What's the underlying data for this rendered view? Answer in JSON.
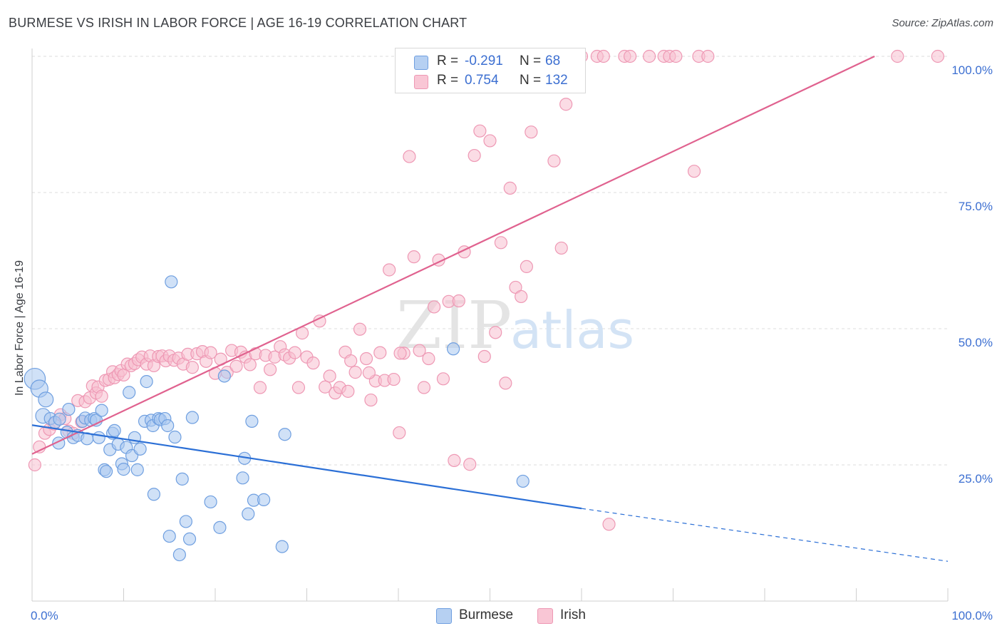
{
  "title": "BURMESE VS IRISH IN LABOR FORCE | AGE 16-19 CORRELATION CHART",
  "source": "Source: ZipAtlas.com",
  "watermark": "ZIPatlas",
  "colors": {
    "burmese_fill": "#a9c8f0",
    "burmese_stroke": "#6f9fe0",
    "burmese_line": "#2b6fd6",
    "irish_fill": "#f7bfd0",
    "irish_stroke": "#ee98b4",
    "irish_line": "#e0628f",
    "tick_text": "#3c6fd1",
    "grid": "#dddddd"
  },
  "legend": {
    "rows": [
      {
        "r_label": "R =",
        "r_value": "-0.291",
        "n_label": "N =",
        "n_value": "68",
        "series": "burmese"
      },
      {
        "r_label": "R =",
        "r_value": "0.754",
        "n_label": "N =",
        "n_value": "132",
        "series": "irish"
      }
    ]
  },
  "bottom_legend": [
    "Burmese",
    "Irish"
  ],
  "chart_data": {
    "type": "scatter",
    "title": "BURMESE VS IRISH IN LABOR FORCE | AGE 16-19 CORRELATION CHART",
    "xlabel": "",
    "ylabel": "In Labor Force | Age 16-19",
    "xlim": [
      0,
      100
    ],
    "ylim": [
      0,
      100
    ],
    "x_tick_labels": [
      "0.0%",
      "100.0%"
    ],
    "y_ticks": [
      25,
      50,
      75,
      100
    ],
    "y_tick_labels": [
      "25.0%",
      "50.0%",
      "75.0%",
      "100.0%"
    ],
    "grid": true,
    "legend_position": "top-center",
    "series": [
      {
        "name": "Burmese",
        "r": -0.291,
        "n": 68,
        "trend": {
          "x0": 0,
          "y0": 32.3,
          "x1": 60,
          "y1": 17.0,
          "dashed_to_x": 100,
          "dashed_to_y": 7.3
        },
        "points": [
          [
            0.3,
            40.8,
            3
          ],
          [
            0.8,
            39.0,
            2
          ],
          [
            1.5,
            37.0,
            1.5
          ],
          [
            1.2,
            34.0,
            1.5
          ],
          [
            2.0,
            33.5,
            1
          ],
          [
            2.5,
            32.8,
            1
          ],
          [
            3.0,
            33.4,
            1
          ],
          [
            2.9,
            29.0,
            1
          ],
          [
            3.8,
            31.0,
            1
          ],
          [
            4.0,
            35.2,
            1
          ],
          [
            4.5,
            30.0,
            1
          ],
          [
            5.0,
            30.4,
            1
          ],
          [
            5.5,
            33.0,
            1
          ],
          [
            5.8,
            33.6,
            1
          ],
          [
            6.0,
            29.8,
            1
          ],
          [
            6.4,
            33.2,
            1
          ],
          [
            6.8,
            33.5,
            1
          ],
          [
            7.0,
            33.2,
            1
          ],
          [
            7.3,
            30.0,
            1
          ],
          [
            7.6,
            35.0,
            1
          ],
          [
            7.9,
            24.1,
            1
          ],
          [
            8.1,
            23.8,
            1
          ],
          [
            8.5,
            27.8,
            1
          ],
          [
            8.8,
            30.8,
            1
          ],
          [
            9.0,
            31.3,
            1
          ],
          [
            9.4,
            28.8,
            1
          ],
          [
            9.8,
            25.2,
            1
          ],
          [
            10.0,
            24.2,
            1
          ],
          [
            10.3,
            28.2,
            1
          ],
          [
            10.6,
            38.3,
            1
          ],
          [
            10.9,
            26.7,
            1
          ],
          [
            11.2,
            30.0,
            1
          ],
          [
            11.5,
            24.1,
            1
          ],
          [
            11.8,
            27.9,
            1
          ],
          [
            12.3,
            33.0,
            1
          ],
          [
            12.5,
            40.3,
            1
          ],
          [
            13.0,
            33.2,
            1
          ],
          [
            13.2,
            32.2,
            1
          ],
          [
            13.3,
            19.6,
            1
          ],
          [
            13.8,
            33.5,
            1
          ],
          [
            14.0,
            33.3,
            1
          ],
          [
            14.5,
            33.5,
            1
          ],
          [
            14.8,
            32.2,
            1
          ],
          [
            15.0,
            11.9,
            1
          ],
          [
            15.2,
            58.6,
            1
          ],
          [
            15.6,
            30.1,
            1
          ],
          [
            16.1,
            8.5,
            1
          ],
          [
            16.4,
            22.4,
            1
          ],
          [
            16.8,
            14.6,
            1
          ],
          [
            17.2,
            11.4,
            1
          ],
          [
            17.5,
            33.7,
            1
          ],
          [
            19.5,
            18.2,
            1
          ],
          [
            20.5,
            13.5,
            1
          ],
          [
            21.0,
            41.3,
            1
          ],
          [
            23.2,
            26.2,
            1
          ],
          [
            23.0,
            22.6,
            1
          ],
          [
            23.6,
            16.0,
            1
          ],
          [
            24.0,
            33.0,
            1
          ],
          [
            24.2,
            18.5,
            1
          ],
          [
            25.3,
            18.6,
            1
          ],
          [
            27.3,
            10.0,
            1
          ],
          [
            27.6,
            30.6,
            1
          ],
          [
            46.0,
            46.3,
            1
          ],
          [
            53.6,
            22.0,
            1
          ]
        ]
      },
      {
        "name": "Irish",
        "r": 0.754,
        "n": 132,
        "trend": {
          "x0": 0,
          "y0": 27.0,
          "x1": 92,
          "y1": 100.0
        },
        "points": [
          [
            0.3,
            25.0,
            1
          ],
          [
            0.8,
            28.3,
            1
          ],
          [
            1.4,
            30.8,
            1
          ],
          [
            1.9,
            31.5,
            1
          ],
          [
            2.4,
            32.5,
            1
          ],
          [
            3.1,
            34.2,
            1
          ],
          [
            3.6,
            33.5,
            1
          ],
          [
            4.0,
            31.2,
            1
          ],
          [
            4.5,
            30.8,
            1
          ],
          [
            5.0,
            36.8,
            1
          ],
          [
            5.4,
            32.9,
            1
          ],
          [
            5.8,
            36.6,
            1
          ],
          [
            6.3,
            37.3,
            1
          ],
          [
            6.6,
            39.5,
            1
          ],
          [
            7.0,
            38.2,
            1
          ],
          [
            7.2,
            39.3,
            1
          ],
          [
            7.6,
            37.6,
            1
          ],
          [
            8.0,
            40.5,
            1
          ],
          [
            8.4,
            40.7,
            1
          ],
          [
            8.8,
            42.1,
            1
          ],
          [
            9.0,
            41.0,
            1
          ],
          [
            9.4,
            41.6,
            1
          ],
          [
            9.7,
            42.3,
            1
          ],
          [
            10.0,
            41.5,
            1
          ],
          [
            10.4,
            43.5,
            1
          ],
          [
            10.8,
            43.2,
            1
          ],
          [
            11.2,
            43.6,
            1
          ],
          [
            11.6,
            44.3,
            1
          ],
          [
            12.0,
            44.8,
            1
          ],
          [
            12.5,
            43.5,
            1
          ],
          [
            12.9,
            45.0,
            1
          ],
          [
            13.3,
            43.2,
            1
          ],
          [
            13.8,
            44.9,
            1
          ],
          [
            14.2,
            45.0,
            1
          ],
          [
            14.6,
            44.1,
            1
          ],
          [
            15.0,
            45.0,
            1
          ],
          [
            15.5,
            44.2,
            1
          ],
          [
            16.0,
            44.6,
            1
          ],
          [
            16.5,
            43.5,
            1
          ],
          [
            17.0,
            45.3,
            1
          ],
          [
            17.5,
            42.9,
            1
          ],
          [
            18.0,
            45.4,
            1
          ],
          [
            18.6,
            45.8,
            1
          ],
          [
            19.0,
            44.0,
            1
          ],
          [
            19.5,
            45.6,
            1
          ],
          [
            20.0,
            41.8,
            1
          ],
          [
            20.6,
            44.4,
            1
          ],
          [
            21.3,
            42.0,
            1
          ],
          [
            21.8,
            46.0,
            1
          ],
          [
            22.3,
            43.1,
            1
          ],
          [
            22.8,
            45.7,
            1
          ],
          [
            23.3,
            44.8,
            1
          ],
          [
            23.8,
            43.4,
            1
          ],
          [
            24.4,
            45.4,
            1
          ],
          [
            24.9,
            39.2,
            1
          ],
          [
            25.5,
            45.1,
            1
          ],
          [
            26.0,
            42.5,
            1
          ],
          [
            26.5,
            44.8,
            1
          ],
          [
            27.1,
            46.7,
            1
          ],
          [
            27.6,
            45.2,
            1
          ],
          [
            28.1,
            44.6,
            1
          ],
          [
            28.7,
            45.6,
            1
          ],
          [
            29.1,
            39.2,
            1
          ],
          [
            29.5,
            49.2,
            1
          ],
          [
            30.0,
            44.8,
            1
          ],
          [
            30.7,
            43.7,
            1
          ],
          [
            31.4,
            51.4,
            1
          ],
          [
            32.0,
            39.3,
            1
          ],
          [
            32.5,
            41.3,
            1
          ],
          [
            33.1,
            38.2,
            1
          ],
          [
            33.6,
            39.2,
            1
          ],
          [
            34.2,
            45.7,
            1
          ],
          [
            34.8,
            44.1,
            1
          ],
          [
            35.3,
            42.0,
            1
          ],
          [
            35.8,
            49.9,
            1
          ],
          [
            36.5,
            44.5,
            1
          ],
          [
            37.0,
            36.9,
            1
          ],
          [
            37.5,
            40.4,
            1
          ],
          [
            38.0,
            45.6,
            1
          ],
          [
            38.5,
            40.5,
            1
          ],
          [
            39.0,
            60.8,
            1
          ],
          [
            39.5,
            40.7,
            1
          ],
          [
            40.1,
            30.9,
            1
          ],
          [
            40.6,
            45.5,
            1
          ],
          [
            41.2,
            81.6,
            1
          ],
          [
            41.7,
            63.2,
            1
          ],
          [
            42.3,
            46.0,
            1
          ],
          [
            42.8,
            39.2,
            1
          ],
          [
            43.3,
            44.5,
            1
          ],
          [
            43.9,
            54.0,
            1
          ],
          [
            44.4,
            62.6,
            1
          ],
          [
            44.9,
            40.8,
            1
          ],
          [
            45.5,
            55.0,
            1
          ],
          [
            46.1,
            25.8,
            1
          ],
          [
            46.6,
            55.1,
            1
          ],
          [
            47.2,
            64.1,
            1
          ],
          [
            47.8,
            25.1,
            1
          ],
          [
            48.3,
            81.8,
            1
          ],
          [
            48.9,
            86.3,
            1
          ],
          [
            49.4,
            44.9,
            1
          ],
          [
            50.0,
            84.5,
            1
          ],
          [
            50.6,
            49.3,
            1
          ],
          [
            51.2,
            65.8,
            1
          ],
          [
            51.7,
            40.0,
            1
          ],
          [
            52.2,
            75.8,
            1
          ],
          [
            52.8,
            57.6,
            1
          ],
          [
            53.4,
            55.9,
            1
          ],
          [
            54.0,
            61.4,
            1
          ],
          [
            54.5,
            86.1,
            1
          ],
          [
            56.1,
            100.0,
            1
          ],
          [
            57.0,
            80.8,
            1
          ],
          [
            57.8,
            64.8,
            1
          ],
          [
            58.3,
            91.2,
            1
          ],
          [
            58.9,
            100.0,
            1
          ],
          [
            60.0,
            100.0,
            1
          ],
          [
            61.7,
            100.0,
            1
          ],
          [
            62.4,
            100.0,
            1
          ],
          [
            63.0,
            14.1,
            1
          ],
          [
            64.7,
            100.0,
            1
          ],
          [
            65.3,
            100.0,
            1
          ],
          [
            67.4,
            100.0,
            1
          ],
          [
            69.0,
            100.0,
            1
          ],
          [
            69.6,
            100.0,
            1
          ],
          [
            70.3,
            100.0,
            1
          ],
          [
            72.3,
            78.9,
            1
          ],
          [
            72.8,
            100.0,
            1
          ],
          [
            73.8,
            100.0,
            1
          ],
          [
            94.5,
            100.0,
            1
          ],
          [
            98.9,
            100.0,
            1
          ],
          [
            40.2,
            45.5,
            1
          ],
          [
            36.8,
            41.9,
            1
          ],
          [
            34.5,
            38.5,
            1
          ]
        ]
      }
    ]
  }
}
